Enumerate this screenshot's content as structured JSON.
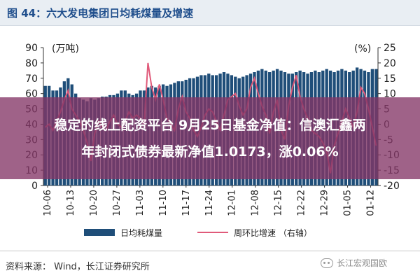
{
  "figure_title": "图 44：六大发电集团日均耗煤量及增速",
  "overlay": {
    "line1": "稳定的线上配资平台 9月25日基金净值：信澳汇鑫两",
    "line2": "年封闭式债券最新净值1.0173，涨0.06%"
  },
  "legend": {
    "bar_label": "日均耗煤量",
    "line_label": "周环比增速 （右轴）"
  },
  "source": "资料来源：  Wind，长江证券研究所",
  "watermark": "长江宏观国欧",
  "colors": {
    "bar": "#1f4e79",
    "line": "#e05a7a",
    "title": "#1f4e8c",
    "overlay": "#843666"
  },
  "chart_data": {
    "type": "bar",
    "title": "",
    "left_unit": "(万吨)",
    "right_unit": "(%)",
    "ylim_left": [
      0,
      90
    ],
    "yticks_left": [
      0,
      10,
      20,
      30,
      40,
      50,
      60,
      70,
      80,
      90
    ],
    "ylim_right": [
      -20,
      25
    ],
    "yticks_right": [
      -20,
      -15,
      -10,
      -5,
      0,
      5,
      10,
      15,
      20,
      25
    ],
    "grid": false,
    "xtick_labels": [
      "10-06",
      "10-13",
      "10-20",
      "10-27",
      "11-03",
      "11-10",
      "11-17",
      "11-24",
      "12-01",
      "12-08",
      "12-15",
      "12-22",
      "12-29",
      "01-05",
      "01-12"
    ],
    "series": [
      {
        "name": "日均耗煤量",
        "type": "bar",
        "axis": "left",
        "values": [
          65,
          65,
          62,
          62,
          64,
          68,
          70,
          66,
          60,
          57,
          56,
          55,
          57,
          56,
          57,
          58,
          58,
          59,
          59,
          60,
          62,
          62,
          60,
          59,
          60,
          62,
          62,
          64,
          65,
          64,
          65,
          66,
          65,
          66,
          67,
          68,
          68,
          69,
          70,
          70,
          71,
          72,
          72,
          73,
          72,
          72,
          73,
          74,
          73,
          72,
          71,
          70,
          71,
          72,
          73,
          74,
          75,
          76,
          75,
          74,
          75,
          76,
          75,
          74,
          73,
          73,
          74,
          75,
          74,
          73,
          74,
          75,
          74,
          75,
          76,
          75,
          74,
          75,
          76,
          75,
          74,
          75,
          77,
          76,
          75,
          74,
          76,
          76
        ]
      },
      {
        "name": "周环比增速",
        "type": "line",
        "axis": "right",
        "values": [
          -1,
          0,
          -2,
          1,
          4,
          8,
          11,
          5,
          3,
          1,
          -2,
          -6,
          -12,
          -3,
          1,
          -1,
          -2,
          1,
          3,
          0,
          -1,
          1,
          4,
          2,
          3,
          2,
          0,
          20,
          12,
          8,
          13,
          8,
          2,
          0,
          -2,
          5,
          9,
          4,
          2,
          -2,
          -4,
          -1,
          3,
          5,
          4,
          1,
          -2,
          3,
          8,
          9,
          10,
          6,
          3,
          5,
          12,
          15,
          10,
          6,
          3,
          -3,
          4,
          8,
          -2,
          -5,
          6,
          12,
          16,
          9,
          5,
          2,
          -2,
          -3,
          -4,
          -6,
          -9,
          -16,
          -7,
          -3,
          1,
          5,
          2,
          -1,
          4,
          12,
          10,
          5,
          -1,
          -7
        ]
      }
    ]
  }
}
